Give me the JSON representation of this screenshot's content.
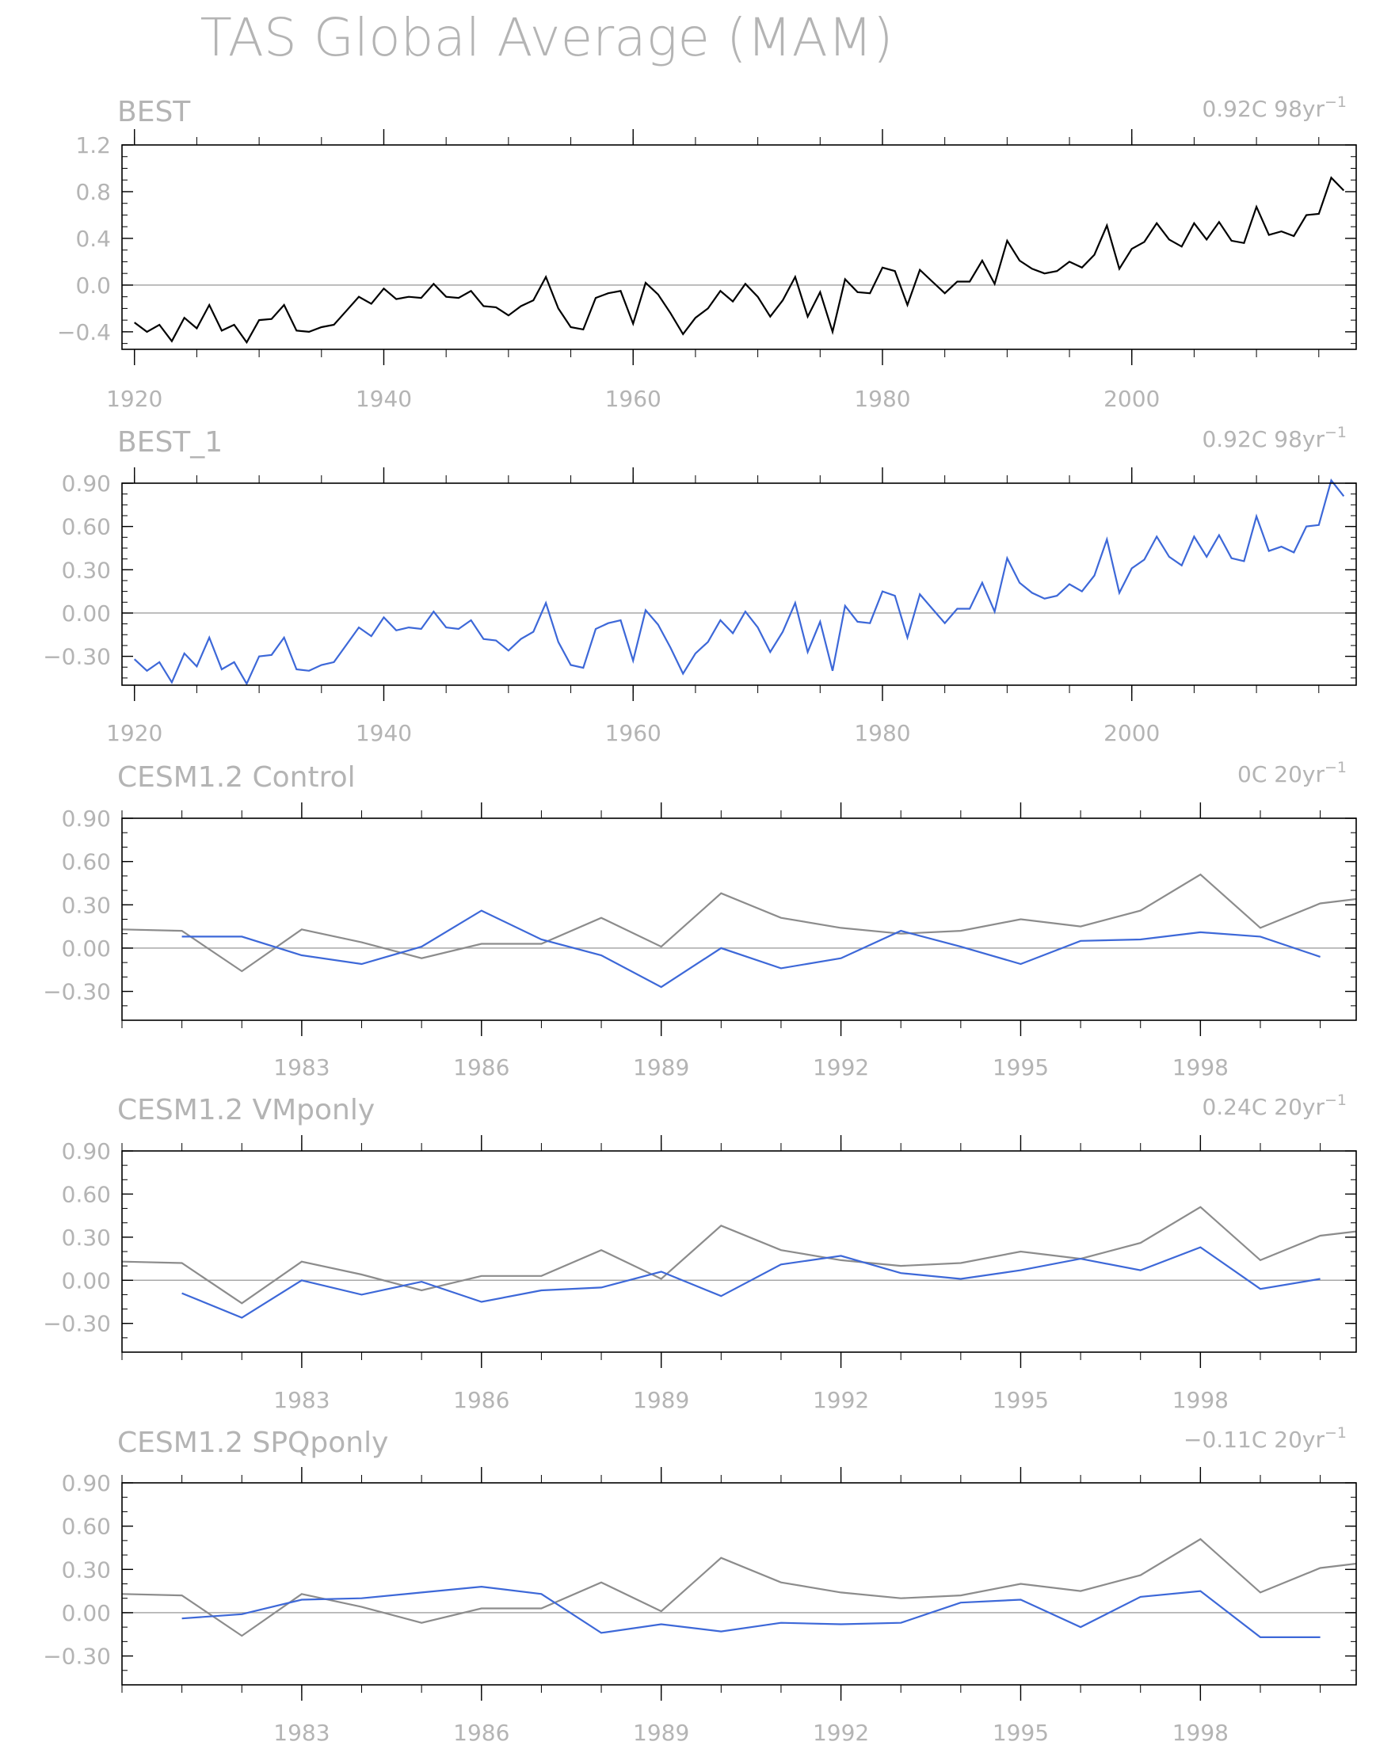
{
  "figure": {
    "title": "TAS Global Average (MAM)"
  },
  "colors": {
    "text": "#b4b4b4",
    "axes": "#000000",
    "zero_line": "#a8a8a8",
    "best": "#000000",
    "model": "#3d68d8",
    "observed_overlay": "#8c8c8c"
  },
  "chart_data": [
    {
      "type": "line",
      "title": "BEST",
      "trend_label": "0.92C 98yr",
      "trend_exp": "−1",
      "xlim": [
        1919,
        2018
      ],
      "ylim": [
        -0.55,
        1.2
      ],
      "yticks": [
        -0.4,
        0.0,
        0.4,
        0.8,
        1.2
      ],
      "ytick_labels": [
        "−0.4",
        "0.0",
        "0.4",
        "0.8",
        "1.2"
      ],
      "xticks": [
        1920,
        1940,
        1960,
        1980,
        2000
      ],
      "xtick_labels": [
        "1920",
        "1940",
        "1960",
        "1980",
        "2000"
      ],
      "zero_line": 0,
      "x": [
        1920,
        1921,
        1922,
        1923,
        1924,
        1925,
        1926,
        1927,
        1928,
        1929,
        1930,
        1931,
        1932,
        1933,
        1934,
        1935,
        1936,
        1937,
        1938,
        1939,
        1940,
        1941,
        1942,
        1943,
        1944,
        1945,
        1946,
        1947,
        1948,
        1949,
        1950,
        1951,
        1952,
        1953,
        1954,
        1955,
        1956,
        1957,
        1958,
        1959,
        1960,
        1961,
        1962,
        1963,
        1964,
        1965,
        1966,
        1967,
        1968,
        1969,
        1970,
        1971,
        1972,
        1973,
        1974,
        1975,
        1976,
        1977,
        1978,
        1979,
        1980,
        1981,
        1982,
        1983,
        1984,
        1985,
        1986,
        1987,
        1988,
        1989,
        1990,
        1991,
        1992,
        1993,
        1994,
        1995,
        1996,
        1997,
        1998,
        1999,
        2000,
        2001,
        2002,
        2003,
        2004,
        2005,
        2006,
        2007,
        2008,
        2009,
        2010,
        2011,
        2012,
        2013,
        2014,
        2015,
        2016,
        2017
      ],
      "series": [
        {
          "color": "#000000",
          "values": [
            -0.32,
            -0.4,
            -0.34,
            -0.48,
            -0.28,
            -0.37,
            -0.17,
            -0.39,
            -0.34,
            -0.49,
            -0.3,
            -0.29,
            -0.17,
            -0.39,
            -0.4,
            -0.36,
            -0.34,
            -0.22,
            -0.1,
            -0.16,
            -0.03,
            -0.12,
            -0.1,
            -0.11,
            0.01,
            -0.1,
            -0.11,
            -0.05,
            -0.18,
            -0.19,
            -0.26,
            -0.18,
            -0.13,
            0.07,
            -0.2,
            -0.36,
            -0.38,
            -0.11,
            -0.07,
            -0.05,
            -0.33,
            0.02,
            -0.08,
            -0.24,
            -0.42,
            -0.28,
            -0.2,
            -0.05,
            -0.14,
            0.01,
            -0.1,
            -0.27,
            -0.13,
            0.07,
            -0.27,
            -0.06,
            -0.4,
            0.05,
            -0.06,
            -0.07,
            0.15,
            0.12,
            -0.17,
            0.13,
            0.03,
            -0.07,
            0.03,
            0.03,
            0.21,
            0.01,
            0.38,
            0.21,
            0.14,
            0.1,
            0.12,
            0.2,
            0.15,
            0.26,
            0.51,
            0.14,
            0.31,
            0.37,
            0.53,
            0.39,
            0.33,
            0.53,
            0.39,
            0.54,
            0.38,
            0.36,
            0.67,
            0.43,
            0.46,
            0.42,
            0.6,
            0.61,
            0.92,
            0.81
          ]
        }
      ]
    },
    {
      "type": "line",
      "title": "BEST_1",
      "trend_label": "0.92C 98yr",
      "trend_exp": "−1",
      "xlim": [
        1919,
        2018
      ],
      "ylim": [
        -0.5,
        0.9
      ],
      "yticks": [
        -0.3,
        0.0,
        0.3,
        0.6,
        0.9
      ],
      "ytick_labels": [
        "−0.30",
        "0.00",
        "0.30",
        "0.60",
        "0.90"
      ],
      "xticks": [
        1920,
        1940,
        1960,
        1980,
        2000
      ],
      "xtick_labels": [
        "1920",
        "1940",
        "1960",
        "1980",
        "2000"
      ],
      "zero_line": 0,
      "x": [
        1920,
        1921,
        1922,
        1923,
        1924,
        1925,
        1926,
        1927,
        1928,
        1929,
        1930,
        1931,
        1932,
        1933,
        1934,
        1935,
        1936,
        1937,
        1938,
        1939,
        1940,
        1941,
        1942,
        1943,
        1944,
        1945,
        1946,
        1947,
        1948,
        1949,
        1950,
        1951,
        1952,
        1953,
        1954,
        1955,
        1956,
        1957,
        1958,
        1959,
        1960,
        1961,
        1962,
        1963,
        1964,
        1965,
        1966,
        1967,
        1968,
        1969,
        1970,
        1971,
        1972,
        1973,
        1974,
        1975,
        1976,
        1977,
        1978,
        1979,
        1980,
        1981,
        1982,
        1983,
        1984,
        1985,
        1986,
        1987,
        1988,
        1989,
        1990,
        1991,
        1992,
        1993,
        1994,
        1995,
        1996,
        1997,
        1998,
        1999,
        2000,
        2001,
        2002,
        2003,
        2004,
        2005,
        2006,
        2007,
        2008,
        2009,
        2010,
        2011,
        2012,
        2013,
        2014,
        2015,
        2016,
        2017
      ],
      "series": [
        {
          "color": "#3d68d8",
          "values": [
            -0.32,
            -0.4,
            -0.34,
            -0.48,
            -0.28,
            -0.37,
            -0.17,
            -0.39,
            -0.34,
            -0.49,
            -0.3,
            -0.29,
            -0.17,
            -0.39,
            -0.4,
            -0.36,
            -0.34,
            -0.22,
            -0.1,
            -0.16,
            -0.03,
            -0.12,
            -0.1,
            -0.11,
            0.01,
            -0.1,
            -0.11,
            -0.05,
            -0.18,
            -0.19,
            -0.26,
            -0.18,
            -0.13,
            0.07,
            -0.2,
            -0.36,
            -0.38,
            -0.11,
            -0.07,
            -0.05,
            -0.33,
            0.02,
            -0.08,
            -0.24,
            -0.42,
            -0.28,
            -0.2,
            -0.05,
            -0.14,
            0.01,
            -0.1,
            -0.27,
            -0.13,
            0.07,
            -0.27,
            -0.06,
            -0.4,
            0.05,
            -0.06,
            -0.07,
            0.15,
            0.12,
            -0.17,
            0.13,
            0.03,
            -0.07,
            0.03,
            0.03,
            0.21,
            0.01,
            0.38,
            0.21,
            0.14,
            0.1,
            0.12,
            0.2,
            0.15,
            0.26,
            0.51,
            0.14,
            0.31,
            0.37,
            0.53,
            0.39,
            0.33,
            0.53,
            0.39,
            0.54,
            0.38,
            0.36,
            0.67,
            0.43,
            0.46,
            0.42,
            0.6,
            0.61,
            0.92,
            0.81
          ]
        }
      ]
    },
    {
      "type": "line",
      "title": "CESM1.2 Control",
      "trend_label": "0C 20yr",
      "trend_exp": "−1",
      "xlim": [
        1980,
        2000.6
      ],
      "ylim": [
        -0.5,
        0.9
      ],
      "yticks": [
        -0.3,
        0.0,
        0.3,
        0.6,
        0.9
      ],
      "ytick_labels": [
        "−0.30",
        "0.00",
        "0.30",
        "0.60",
        "0.90"
      ],
      "xticks": [
        1983,
        1986,
        1989,
        1992,
        1995,
        1998
      ],
      "xtick_labels": [
        "1983",
        "1986",
        "1989",
        "1992",
        "1995",
        "1998"
      ],
      "zero_line": 0,
      "series": [
        {
          "color": "#8c8c8c",
          "x": [
            1980,
            1981,
            1982,
            1983,
            1984,
            1985,
            1986,
            1987,
            1988,
            1989,
            1990,
            1991,
            1992,
            1993,
            1994,
            1995,
            1996,
            1997,
            1998,
            1999,
            2000,
            2000.6
          ],
          "values": [
            0.13,
            0.12,
            -0.16,
            0.13,
            0.04,
            -0.07,
            0.03,
            0.03,
            0.21,
            0.01,
            0.38,
            0.21,
            0.14,
            0.1,
            0.12,
            0.2,
            0.15,
            0.26,
            0.51,
            0.14,
            0.31,
            0.34
          ]
        },
        {
          "color": "#3d68d8",
          "x": [
            1981,
            1982,
            1983,
            1984,
            1985,
            1986,
            1987,
            1988,
            1989,
            1990,
            1991,
            1992,
            1993,
            1994,
            1995,
            1996,
            1997,
            1998,
            1999,
            2000
          ],
          "values": [
            0.08,
            0.08,
            -0.05,
            -0.11,
            0.01,
            0.26,
            0.06,
            -0.05,
            -0.27,
            0.0,
            -0.14,
            -0.07,
            0.12,
            0.01,
            -0.11,
            0.05,
            0.06,
            0.11,
            0.08,
            -0.06
          ]
        }
      ]
    },
    {
      "type": "line",
      "title": "CESM1.2 VMponly",
      "trend_label": "0.24C 20yr",
      "trend_exp": "−1",
      "xlim": [
        1980,
        2000.6
      ],
      "ylim": [
        -0.5,
        0.9
      ],
      "yticks": [
        -0.3,
        0.0,
        0.3,
        0.6,
        0.9
      ],
      "ytick_labels": [
        "−0.30",
        "0.00",
        "0.30",
        "0.60",
        "0.90"
      ],
      "xticks": [
        1983,
        1986,
        1989,
        1992,
        1995,
        1998
      ],
      "xtick_labels": [
        "1983",
        "1986",
        "1989",
        "1992",
        "1995",
        "1998"
      ],
      "zero_line": 0,
      "series": [
        {
          "color": "#8c8c8c",
          "x": [
            1980,
            1981,
            1982,
            1983,
            1984,
            1985,
            1986,
            1987,
            1988,
            1989,
            1990,
            1991,
            1992,
            1993,
            1994,
            1995,
            1996,
            1997,
            1998,
            1999,
            2000,
            2000.6
          ],
          "values": [
            0.13,
            0.12,
            -0.16,
            0.13,
            0.04,
            -0.07,
            0.03,
            0.03,
            0.21,
            0.01,
            0.38,
            0.21,
            0.14,
            0.1,
            0.12,
            0.2,
            0.15,
            0.26,
            0.51,
            0.14,
            0.31,
            0.34
          ]
        },
        {
          "color": "#3d68d8",
          "x": [
            1981,
            1982,
            1983,
            1984,
            1985,
            1986,
            1987,
            1988,
            1989,
            1990,
            1991,
            1992,
            1993,
            1994,
            1995,
            1996,
            1997,
            1998,
            1999,
            2000
          ],
          "values": [
            -0.09,
            -0.26,
            0.0,
            -0.1,
            -0.01,
            -0.15,
            -0.07,
            -0.05,
            0.06,
            -0.11,
            0.11,
            0.17,
            0.05,
            0.01,
            0.07,
            0.15,
            0.07,
            0.23,
            -0.06,
            0.01
          ]
        }
      ]
    },
    {
      "type": "line",
      "title": "CESM1.2 SPQponly",
      "trend_label": "−0.11C 20yr",
      "trend_exp": "−1",
      "xlim": [
        1980,
        2000.6
      ],
      "ylim": [
        -0.5,
        0.9
      ],
      "yticks": [
        -0.3,
        0.0,
        0.3,
        0.6,
        0.9
      ],
      "ytick_labels": [
        "−0.30",
        "0.00",
        "0.30",
        "0.60",
        "0.90"
      ],
      "xticks": [
        1983,
        1986,
        1989,
        1992,
        1995,
        1998
      ],
      "xtick_labels": [
        "1983",
        "1986",
        "1989",
        "1992",
        "1995",
        "1998"
      ],
      "zero_line": 0,
      "series": [
        {
          "color": "#8c8c8c",
          "x": [
            1980,
            1981,
            1982,
            1983,
            1984,
            1985,
            1986,
            1987,
            1988,
            1989,
            1990,
            1991,
            1992,
            1993,
            1994,
            1995,
            1996,
            1997,
            1998,
            1999,
            2000,
            2000.6
          ],
          "values": [
            0.13,
            0.12,
            -0.16,
            0.13,
            0.04,
            -0.07,
            0.03,
            0.03,
            0.21,
            0.01,
            0.38,
            0.21,
            0.14,
            0.1,
            0.12,
            0.2,
            0.15,
            0.26,
            0.51,
            0.14,
            0.31,
            0.34
          ]
        },
        {
          "color": "#3d68d8",
          "x": [
            1981,
            1982,
            1983,
            1984,
            1985,
            1986,
            1987,
            1988,
            1989,
            1990,
            1991,
            1992,
            1993,
            1994,
            1995,
            1996,
            1997,
            1998,
            1999,
            2000
          ],
          "values": [
            -0.04,
            -0.01,
            0.09,
            0.1,
            0.14,
            0.18,
            0.13,
            -0.14,
            -0.08,
            -0.13,
            -0.07,
            -0.08,
            -0.07,
            0.07,
            0.09,
            -0.1,
            0.11,
            0.15,
            -0.17,
            -0.17
          ]
        }
      ]
    }
  ]
}
